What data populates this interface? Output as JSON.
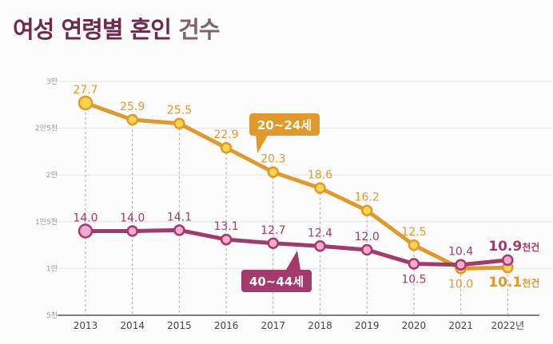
{
  "title": {
    "main": "여성 연령별 혼인",
    "sub": "건수"
  },
  "chart_data": {
    "type": "line",
    "title": "여성 연령별 혼인 건수",
    "x": [
      "2013",
      "2014",
      "2015",
      "2016",
      "2017",
      "2018",
      "2019",
      "2020",
      "2021",
      "2022년"
    ],
    "yticks": [
      {
        "v": 5,
        "label": "5천"
      },
      {
        "v": 10,
        "label": "1만"
      },
      {
        "v": 15,
        "label": "1만5천"
      },
      {
        "v": 20,
        "label": "2만"
      },
      {
        "v": 25,
        "label": "2만5천"
      },
      {
        "v": 30,
        "label": "3만"
      }
    ],
    "ylim": [
      5,
      30
    ],
    "unit": "천건",
    "grid": true,
    "series": [
      {
        "name": "20~24세",
        "color": "#e0992c",
        "fill": "#f7d64a",
        "values": [
          27.7,
          25.9,
          25.5,
          22.9,
          20.3,
          18.6,
          16.2,
          12.5,
          10.0,
          10.1
        ]
      },
      {
        "name": "40~44세",
        "color": "#a23a6c",
        "fill": "#f6a8cf",
        "values": [
          14.0,
          14.0,
          14.1,
          13.1,
          12.7,
          12.4,
          12.0,
          10.5,
          10.4,
          10.9
        ]
      }
    ]
  }
}
